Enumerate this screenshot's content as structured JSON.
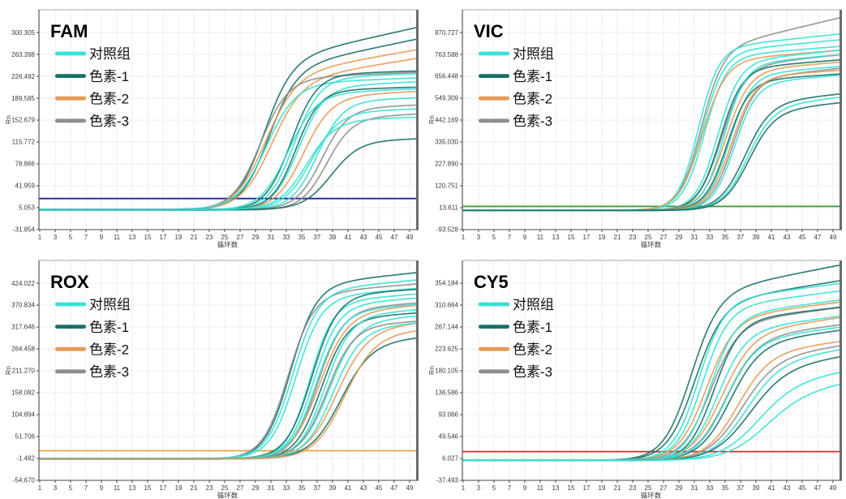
{
  "app": {
    "background": "#ffffff",
    "description_labels": {
      "y_axis": "Rn",
      "x_axis": "循环数"
    }
  },
  "colors": {
    "cyan": "#35E1D4",
    "teal": "#176F68",
    "orange": "#E49B55",
    "gray": "#8E8E8E",
    "grid": "#ececec",
    "axis": "#444444",
    "top_border": "#aaaaaa",
    "right_border": "#6b6b6b",
    "tick_text": "#3a3a3a"
  },
  "legend": {
    "items": [
      {
        "label": "对照组",
        "color": "#35E1D4"
      },
      {
        "label": "色素-1",
        "color": "#176F68"
      },
      {
        "label": "色素-2",
        "color": "#E49B55"
      },
      {
        "label": "色素-3",
        "color": "#8E8E8E"
      }
    ]
  },
  "curve_fields": [
    "group_index",
    "baseline",
    "amplitude",
    "midpoint_cycle",
    "steepness",
    "plateau_drift"
  ],
  "chart_data": [
    {
      "type": "line",
      "panel": "top-left",
      "title": "FAM",
      "xlabel": "循环数",
      "ylabel": "Rn",
      "x_ticks": [
        1,
        3,
        5,
        7,
        9,
        11,
        13,
        15,
        17,
        19,
        21,
        23,
        25,
        27,
        29,
        31,
        33,
        35,
        37,
        39,
        41,
        43,
        45,
        47,
        49
      ],
      "xlim": [
        1,
        49.85
      ],
      "y_ticks": [
        -31.854,
        5.053,
        41.959,
        78.866,
        115.772,
        152.679,
        189.585,
        226.492,
        263.398,
        300.305
      ],
      "y_tick_labels": [
        "-31.854",
        "5.053",
        "41.959",
        "78.866",
        "115.772",
        "152.679",
        "189.585",
        "226.492",
        "263.398",
        "300.305"
      ],
      "ylim": [
        -31.854,
        338.7
      ],
      "grid": true,
      "legend_position": "upper-left-inside",
      "threshold": {
        "value": 20.5,
        "color": "#2121A8"
      },
      "curves": [
        [
          1,
          1,
          250,
          30.0,
          0.55,
          2.9
        ],
        [
          1,
          2,
          235,
          30.6,
          0.55,
          2.7
        ],
        [
          2,
          1,
          225,
          30.2,
          0.5,
          2.3
        ],
        [
          2,
          2,
          215,
          31.0,
          0.5,
          2.1
        ],
        [
          3,
          1,
          222,
          29.6,
          0.55,
          0.5
        ],
        [
          0,
          2,
          212,
          30.4,
          0.52,
          0.5
        ],
        [
          1,
          1,
          228,
          33.6,
          0.6,
          0.4
        ],
        [
          0,
          1,
          222,
          34.0,
          0.6,
          0.5
        ],
        [
          0,
          2,
          206,
          34.6,
          0.6,
          0.6
        ],
        [
          1,
          2,
          200,
          34.2,
          0.65,
          0.4
        ],
        [
          2,
          1,
          190,
          35.2,
          0.55,
          0.7
        ],
        [
          0,
          1,
          196,
          33.2,
          0.55,
          0.5
        ],
        [
          0,
          2,
          182,
          37.0,
          0.6,
          0.5
        ],
        [
          3,
          2,
          170,
          37.6,
          0.6,
          0.5
        ],
        [
          3,
          1,
          155,
          38.2,
          0.6,
          0.6
        ],
        [
          0,
          1,
          165,
          36.2,
          0.55,
          0.4
        ],
        [
          1,
          2,
          115,
          38.8,
          0.55,
          0.4
        ],
        [
          0,
          2,
          150,
          35.6,
          0.55,
          0.4
        ]
      ]
    },
    {
      "type": "line",
      "panel": "top-right",
      "title": "VIC",
      "xlabel": "循环数",
      "ylabel": "Rn",
      "x_ticks": [
        1,
        3,
        5,
        7,
        9,
        11,
        13,
        15,
        17,
        19,
        21,
        23,
        25,
        27,
        29,
        31,
        33,
        35,
        37,
        39,
        41,
        43,
        45,
        47,
        49
      ],
      "xlim": [
        1,
        49.85
      ],
      "y_ticks": [
        -93.528,
        13.611,
        120.751,
        227.89,
        335.03,
        442.169,
        549.309,
        656.448,
        763.588,
        870.727
      ],
      "y_tick_labels": [
        "-93.528",
        "13.611",
        "120.751",
        "227.890",
        "335.030",
        "442.169",
        "549.309",
        "656.448",
        "763.588",
        "870.727"
      ],
      "ylim": [
        -93.528,
        982.1
      ],
      "grid": true,
      "legend_position": "upper-left-inside",
      "threshold": {
        "value": 20.0,
        "color": "#2F9E3B"
      },
      "curves": [
        [
          3,
          0,
          780,
          31.8,
          0.7,
          9.0
        ],
        [
          0,
          0,
          790,
          31.5,
          0.75,
          4.0
        ],
        [
          0,
          2,
          770,
          32.0,
          0.7,
          3.5
        ],
        [
          0,
          0,
          750,
          32.3,
          0.7,
          3.0
        ],
        [
          2,
          0,
          730,
          32.0,
          0.65,
          3.0
        ],
        [
          0,
          1,
          720,
          34.0,
          0.7,
          4.0
        ],
        [
          3,
          0,
          700,
          34.5,
          0.65,
          4.0
        ],
        [
          1,
          0,
          690,
          34.3,
          0.7,
          3.0
        ],
        [
          2,
          1,
          680,
          35.0,
          0.65,
          3.0
        ],
        [
          0,
          0,
          710,
          34.8,
          0.72,
          3.5
        ],
        [
          0,
          1,
          660,
          35.5,
          0.7,
          3.0
        ],
        [
          3,
          0,
          640,
          36.0,
          0.68,
          4.0
        ],
        [
          1,
          1,
          630,
          35.2,
          0.7,
          2.5
        ],
        [
          2,
          0,
          650,
          35.8,
          0.66,
          2.5
        ],
        [
          0,
          0,
          620,
          36.2,
          0.7,
          3.0
        ],
        [
          1,
          1,
          520,
          37.5,
          0.6,
          4.0
        ],
        [
          0,
          0,
          500,
          37.8,
          0.6,
          4.5
        ],
        [
          1,
          0,
          480,
          38.0,
          0.6,
          4.0
        ]
      ]
    },
    {
      "type": "line",
      "panel": "bottom-left",
      "title": "ROX",
      "xlabel": "循环数",
      "ylabel": "Rn",
      "x_ticks": [
        1,
        3,
        5,
        7,
        9,
        11,
        13,
        15,
        17,
        19,
        21,
        23,
        25,
        27,
        29,
        31,
        33,
        35,
        37,
        39,
        41,
        43,
        45,
        47,
        49
      ],
      "xlim": [
        1,
        49.85
      ],
      "y_ticks": [
        -54.67,
        -1.482,
        51.706,
        104.894,
        158.082,
        211.27,
        264.458,
        317.646,
        370.834,
        424.022
      ],
      "y_tick_labels": [
        "-54.670",
        "-1.482",
        "51.706",
        "104.894",
        "158.082",
        "211.270",
        "264.458",
        "317.646",
        "370.834",
        "424.022"
      ],
      "ylim": [
        -54.67,
        479.3
      ],
      "grid": true,
      "legend_position": "upper-left-inside",
      "threshold": {
        "value": 17.3,
        "color": "#F2A33C"
      },
      "curves": [
        [
          1,
          -3,
          420,
          33.5,
          0.6,
          2.0
        ],
        [
          3,
          -3,
          400,
          33.2,
          0.6,
          1.5
        ],
        [
          0,
          -2,
          405,
          33.8,
          0.6,
          1.8
        ],
        [
          0,
          -2,
          390,
          34.2,
          0.6,
          1.5
        ],
        [
          0,
          -3,
          380,
          36.0,
          0.65,
          1.5
        ],
        [
          1,
          -2,
          395,
          36.3,
          0.6,
          1.2
        ],
        [
          0,
          -2,
          370,
          36.5,
          0.62,
          1.5
        ],
        [
          3,
          -3,
          360,
          37.0,
          0.6,
          1.5
        ],
        [
          2,
          -2,
          350,
          37.2,
          0.55,
          1.8
        ],
        [
          0,
          -2,
          355,
          36.8,
          0.6,
          1.5
        ],
        [
          1,
          -3,
          340,
          37.5,
          0.6,
          1.2
        ],
        [
          0,
          -3,
          345,
          38.0,
          0.6,
          1.5
        ],
        [
          2,
          -2,
          310,
          39.5,
          0.5,
          2.0
        ],
        [
          1,
          -2,
          280,
          40.0,
          0.5,
          1.5
        ],
        [
          0,
          -2,
          330,
          38.5,
          0.55,
          1.5
        ],
        [
          3,
          -2,
          320,
          38.2,
          0.58,
          1.2
        ],
        [
          0,
          -3,
          315,
          39.0,
          0.55,
          1.5
        ],
        [
          2,
          -3,
          300,
          40.5,
          0.5,
          1.5
        ]
      ]
    },
    {
      "type": "line",
      "panel": "bottom-right",
      "title": "CY5",
      "xlabel": "循环数",
      "ylabel": "Rn",
      "x_ticks": [
        1,
        3,
        5,
        7,
        9,
        11,
        13,
        15,
        17,
        19,
        21,
        23,
        25,
        27,
        29,
        31,
        33,
        35,
        37,
        39,
        41,
        43,
        45,
        47,
        49
      ],
      "xlim": [
        1,
        49.85
      ],
      "y_ticks": [
        -37.493,
        6.027,
        49.546,
        93.066,
        136.586,
        180.105,
        223.625,
        267.144,
        310.664,
        354.184
      ],
      "y_tick_labels": [
        "-37.493",
        "6.027",
        "49.546",
        "93.066",
        "136.586",
        "180.105",
        "223.625",
        "267.144",
        "310.664",
        "354.184"
      ],
      "ylim": [
        -37.493,
        399.4
      ],
      "grid": true,
      "legend_position": "upper-left-inside",
      "threshold": {
        "value": 19.5,
        "color": "#D22B2B"
      },
      "curves": [
        [
          1,
          2,
          330,
          30.5,
          0.55,
          3.0
        ],
        [
          1,
          2,
          310,
          31.0,
          0.55,
          2.5
        ],
        [
          0,
          2,
          315,
          31.5,
          0.6,
          2.0
        ],
        [
          0,
          3,
          300,
          32.0,
          0.6,
          2.0
        ],
        [
          2,
          2,
          280,
          32.5,
          0.55,
          2.0
        ],
        [
          3,
          2,
          270,
          33.0,
          0.55,
          2.0
        ],
        [
          1,
          2,
          275,
          33.5,
          0.6,
          1.8
        ],
        [
          0,
          2,
          285,
          33.0,
          0.6,
          2.0
        ],
        [
          2,
          2,
          250,
          34.5,
          0.5,
          2.2
        ],
        [
          3,
          2,
          240,
          35.0,
          0.5,
          2.0
        ],
        [
          0,
          2,
          255,
          34.0,
          0.55,
          2.0
        ],
        [
          1,
          2,
          230,
          35.5,
          0.5,
          2.0
        ],
        [
          0,
          2,
          235,
          35.0,
          0.52,
          2.0
        ],
        [
          3,
          2,
          200,
          37.0,
          0.45,
          2.2
        ],
        [
          0,
          2,
          190,
          37.5,
          0.45,
          2.5
        ],
        [
          2,
          2,
          210,
          36.5,
          0.48,
          2.0
        ],
        [
          1,
          2,
          180,
          38.0,
          0.42,
          2.3
        ],
        [
          0,
          2,
          150,
          39.0,
          0.4,
          2.5
        ],
        [
          0,
          2,
          130,
          40.0,
          0.38,
          2.5
        ]
      ]
    }
  ]
}
